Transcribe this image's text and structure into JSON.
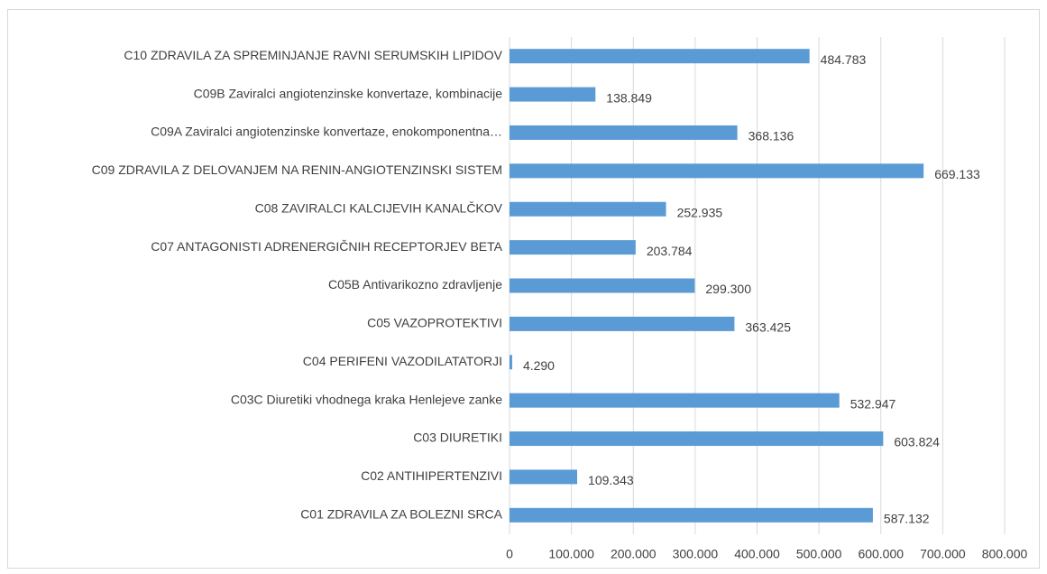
{
  "chart_data": {
    "type": "bar",
    "orientation": "horizontal",
    "categories": [
      "C01 ZDRAVILA ZA BOLEZNI SRCA",
      "C02 ANTIHIPERTENZIVI",
      "C03 DIURETIKI",
      "C03C Diuretiki vhodnega kraka Henlejeve zanke",
      "C04 PERIFENI VAZODILATATORJI",
      "C05 VAZOPROTEKTIVI",
      "C05B Antivarikozno zdravljenje",
      "C07 ANTAGONISTI ADRENERGIČNIH RECEPTORJEV BETA",
      "C08 ZAVIRALCI KALCIJEVIH KANALČKOV",
      "C09 ZDRAVILA Z DELOVANJEM NA RENIN-ANGIOTENZINSKI SISTEM",
      "C09A Zaviralci angiotenzinske konvertaze, enokomponentna…",
      "C09B Zaviralci angiotenzinske konvertaze, kombinacije",
      "C10 ZDRAVILA ZA SPREMINJANJE RAVNI SERUMSKIH LIPIDOV"
    ],
    "values": [
      587132,
      109343,
      603824,
      532947,
      4290,
      363425,
      299300,
      203784,
      252935,
      669133,
      368136,
      138849,
      484783
    ],
    "value_labels": [
      "587.132",
      "109.343",
      "603.824",
      "532.947",
      "4.290",
      "363.425",
      "299.300",
      "203.784",
      "252.935",
      "669.133",
      "368.136",
      "138.849",
      "484.783"
    ],
    "color": "#5b9bd5",
    "xlim": [
      0,
      800000
    ],
    "xticks": [
      0,
      {
        "value": 100000,
        "label": "100.000"
      },
      {
        "value": 200000,
        "label": "200.000"
      },
      {
        "value": 300000,
        "label": "300.000"
      },
      {
        "value": 400000,
        "label": "400.000"
      },
      {
        "value": 500000,
        "label": "500.000"
      },
      {
        "value": 600000,
        "label": "600.000"
      },
      {
        "value": 700000,
        "label": "700.000"
      },
      {
        "value": 800000,
        "label": "800.000"
      }
    ],
    "grid": true
  }
}
